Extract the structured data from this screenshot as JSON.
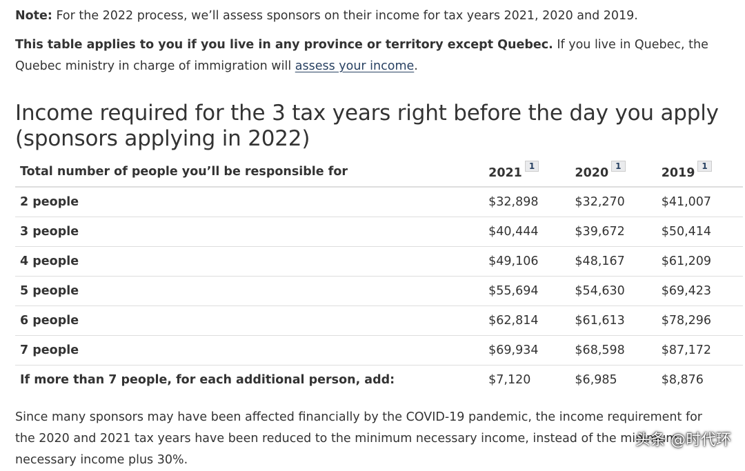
{
  "note": {
    "label": "Note:",
    "text": " For the 2022 process, we’ll assess sponsors on their income for tax years 2021, 2020 and 2019."
  },
  "applies": {
    "bold": "This table applies to you if you live in any province or territory except Quebec.",
    "text": " If you live in Quebec, the Quebec ministry in charge of immigration will ",
    "link": "assess your income",
    "end": "."
  },
  "heading": "Income required for the 3 tax years right before the day you apply (sponsors applying in 2022)",
  "table": {
    "header": "Total number of people you’ll be responsible for",
    "years": [
      "2021",
      "2020",
      "2019"
    ],
    "footnote_marker": "1",
    "rows": [
      {
        "label": "2 people",
        "values": [
          "$32,898",
          "$32,270",
          "$41,007"
        ]
      },
      {
        "label": "3 people",
        "values": [
          "$40,444",
          "$39,672",
          "$50,414"
        ]
      },
      {
        "label": "4 people",
        "values": [
          "$49,106",
          "$48,167",
          "$61,209"
        ]
      },
      {
        "label": "5 people",
        "values": [
          "$55,694",
          "$54,630",
          "$69,423"
        ]
      },
      {
        "label": "6 people",
        "values": [
          "$62,814",
          "$61,613",
          "$78,296"
        ]
      },
      {
        "label": "7 people",
        "values": [
          "$69,934",
          "$68,598",
          "$87,172"
        ]
      },
      {
        "label": "If more than 7 people, for each additional person, add:",
        "values": [
          "$7,120",
          "$6,985",
          "$8,876"
        ]
      }
    ]
  },
  "covid_text": "Since many sponsors may have been affected financially by the COVID-19 pandemic, the income requirement for the 2020 and 2021 tax years have been reduced to the minimum necessary income, instead of the minimum necessary income plus 30%.",
  "watermark": "头条 @时代环"
}
